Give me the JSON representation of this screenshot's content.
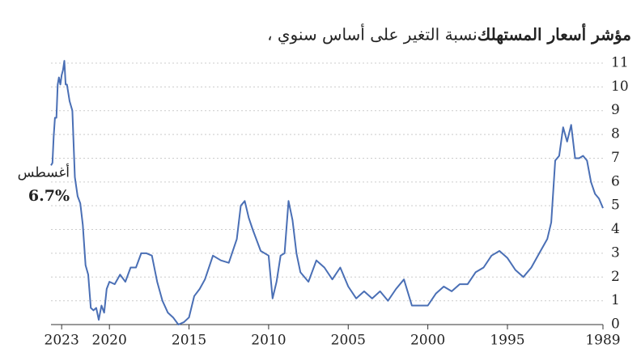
{
  "chart_data": {
    "type": "line",
    "subtitle_bold": "مؤشر أسعار المستهلك",
    "subtitle": "، نسبة التغير على أساس سنوي",
    "annotation_label": "أغسطس",
    "annotation_value": "6.7%",
    "xlim": [
      2023.67,
      1989
    ],
    "xticks": [
      2023,
      2020,
      2015,
      2010,
      2005,
      2000,
      1995,
      1989
    ],
    "ylim": [
      0,
      11
    ],
    "yticks": [
      0,
      1,
      2,
      3,
      4,
      5,
      6,
      7,
      8,
      9,
      10,
      11
    ],
    "grid": true,
    "series": [
      {
        "color": "#4a6fb5",
        "x": [
          2023.67,
          2023.58,
          2023.5,
          2023.42,
          2023.33,
          2023.25,
          2023.17,
          2023.08,
          2023.0,
          2022.92,
          2022.83,
          2022.75,
          2022.67,
          2022.5,
          2022.33,
          2022.17,
          2022.0,
          2021.83,
          2021.67,
          2021.5,
          2021.33,
          2021.17,
          2021.0,
          2020.83,
          2020.67,
          2020.5,
          2020.33,
          2020.17,
          2020.0,
          2019.67,
          2019.33,
          2019.0,
          2018.67,
          2018.33,
          2018.0,
          2017.67,
          2017.33,
          2017.0,
          2016.67,
          2016.33,
          2016.0,
          2015.67,
          2015.33,
          2015.0,
          2014.67,
          2014.33,
          2014.0,
          2013.5,
          2013.0,
          2012.5,
          2012.0,
          2011.75,
          2011.5,
          2011.25,
          2011.0,
          2010.5,
          2010.0,
          2009.75,
          2009.5,
          2009.25,
          2009.0,
          2008.75,
          2008.5,
          2008.25,
          2008.0,
          2007.5,
          2007.0,
          2006.5,
          2006.0,
          2005.5,
          2005.0,
          2004.5,
          2004.0,
          2003.5,
          2003.0,
          2002.5,
          2002.0,
          2001.5,
          2001.0,
          2000.5,
          2000.0,
          1999.5,
          1999.0,
          1998.5,
          1998.0,
          1997.5,
          1997.0,
          1996.5,
          1996.0,
          1995.5,
          1995.0,
          1994.5,
          1994.0,
          1993.5,
          1993.0,
          1992.5,
          1992.25,
          1992.0,
          1991.75,
          1991.5,
          1991.25,
          1991.0,
          1990.75,
          1990.5,
          1990.25,
          1990.0,
          1989.75,
          1989.5,
          1989.25,
          1989.0
        ],
        "values": [
          6.7,
          6.8,
          7.9,
          8.7,
          8.7,
          10.1,
          10.4,
          10.1,
          10.5,
          10.7,
          11.1,
          10.1,
          10.1,
          9.4,
          9.0,
          6.2,
          5.4,
          5.1,
          4.2,
          2.5,
          2.1,
          0.7,
          0.6,
          0.7,
          0.2,
          0.8,
          0.5,
          1.5,
          1.8,
          1.7,
          2.1,
          1.8,
          2.4,
          2.4,
          3.0,
          3.0,
          2.9,
          1.8,
          1.0,
          0.5,
          0.3,
          0.0,
          0.1,
          0.3,
          1.2,
          1.5,
          1.9,
          2.9,
          2.7,
          2.6,
          3.6,
          5.0,
          5.2,
          4.5,
          4.0,
          3.1,
          2.9,
          1.1,
          1.8,
          2.9,
          3.0,
          5.2,
          4.4,
          3.0,
          2.2,
          1.8,
          2.7,
          2.4,
          1.9,
          2.4,
          1.6,
          1.1,
          1.4,
          1.1,
          1.4,
          1.0,
          1.5,
          1.9,
          0.8,
          0.8,
          0.8,
          1.3,
          1.6,
          1.4,
          1.7,
          1.7,
          2.2,
          2.4,
          2.9,
          3.1,
          2.8,
          2.3,
          2.0,
          2.4,
          3.0,
          3.6,
          4.3,
          6.9,
          7.1,
          8.3,
          7.7,
          8.4,
          7.0,
          7.0,
          7.1,
          6.9,
          6.0,
          5.5,
          5.3,
          4.9
        ]
      }
    ]
  }
}
